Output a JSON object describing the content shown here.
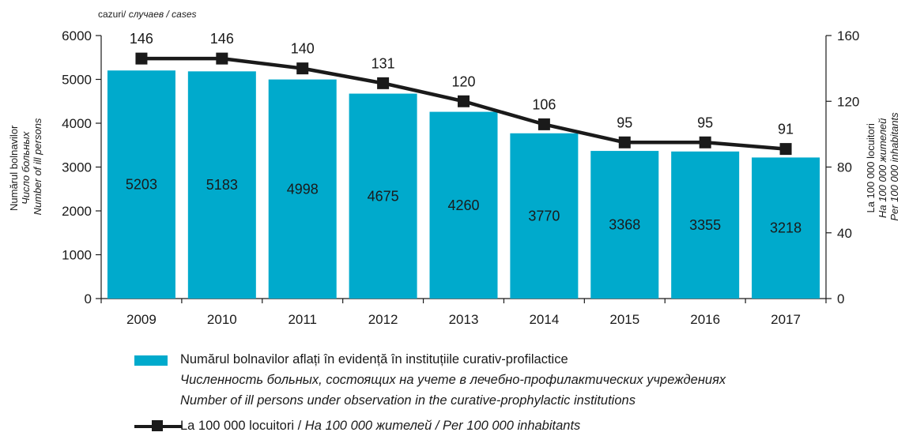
{
  "chart_data": {
    "type": "bar+line",
    "categories": [
      "2009",
      "2010",
      "2011",
      "2012",
      "2013",
      "2014",
      "2015",
      "2016",
      "2017"
    ],
    "series": [
      {
        "name": "Numărul bolnavilor aflați în evidență în instituțiile curativ-profilactice / Численность больных, состоящих на учете в лечебно-профилактических учреждениях / Number of ill persons under observation in the curative-prophylactic institutions",
        "type": "bar",
        "axis": "left",
        "values": [
          5203,
          5183,
          4998,
          4675,
          4260,
          3770,
          3368,
          3355,
          3218
        ]
      },
      {
        "name": "La 100 000 locuitori / На 100 000 жителей / Per 100 000 inhabitants",
        "type": "line",
        "axis": "right",
        "values": [
          146,
          146,
          140,
          131,
          120,
          106,
          95,
          95,
          91
        ]
      }
    ],
    "y_left": {
      "lim": [
        0,
        6000
      ],
      "ticks": [
        0,
        1000,
        2000,
        3000,
        4000,
        5000,
        6000
      ]
    },
    "y_right": {
      "lim": [
        0,
        160
      ],
      "ticks": [
        0,
        40,
        80,
        120,
        160
      ]
    },
    "units_label": [
      "cazuri/ ",
      "случаев / cases"
    ],
    "ylabel_left": [
      "Numărul bolnavilor",
      "Число больных",
      "Number of ill persons"
    ],
    "ylabel_right": [
      "La 100 000 locuitori",
      "На 100 000 жителей",
      "Per 100 000 inhabitants"
    ],
    "colors": {
      "bar": "#00aacc",
      "line": "#1a1a1a"
    }
  },
  "legend": {
    "bar_lines": [
      "Numărul bolnavilor aflați în evidență în instituțiile curativ-profilactice",
      "Численность больных, состоящих на учете в лечебно-профилактических учреждениях",
      "Number of ill persons under observation in the curative-prophylactic institutions"
    ],
    "line_main": "La 100 000 locuitori / ",
    "line_italic": "На 100 000 жителей / Per 100 000 inhabitants"
  }
}
